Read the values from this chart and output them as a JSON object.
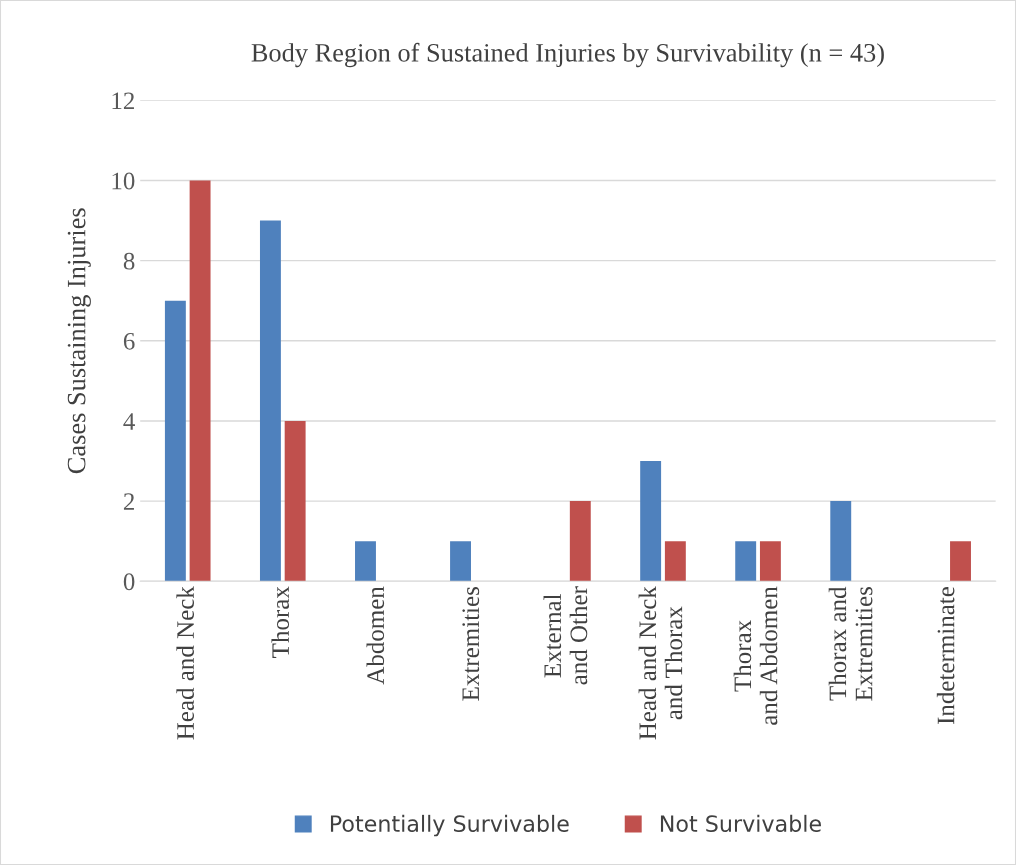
{
  "chart_data": {
    "type": "bar",
    "title": "Body Region of Sustained Injuries by Survivability (n = 43)",
    "ylabel": "Cases Sustaining Injuries",
    "categories": [
      "Head and Neck",
      "Thorax",
      "Abdomen",
      "Extremities",
      "External\nand Other",
      "Head and Neck\nand Thorax",
      "Thorax\nand Abdomen",
      "Thorax and\nExtremities",
      "Indeterminate"
    ],
    "series": [
      {
        "name": "Potentially Survivable",
        "color": "#4f81bd",
        "values": [
          7,
          9,
          1,
          1,
          0,
          3,
          1,
          2,
          0
        ]
      },
      {
        "name": "Not Survivable",
        "color": "#c0504d",
        "values": [
          10,
          4,
          0,
          0,
          2,
          1,
          1,
          0,
          1
        ]
      }
    ],
    "ylim": [
      0,
      12
    ],
    "yticks": [
      0,
      2,
      4,
      6,
      8,
      10,
      12
    ],
    "grid": "y",
    "legend": "bottom"
  }
}
